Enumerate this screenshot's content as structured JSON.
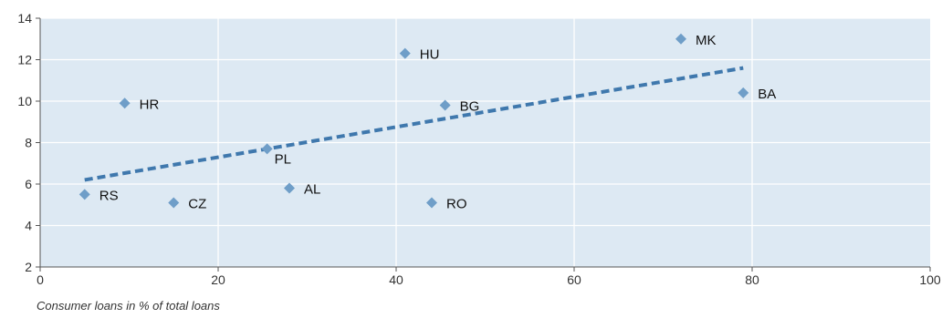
{
  "chart_data": {
    "type": "scatter",
    "xlabel": "Consumer loans in % of total loans",
    "ylabel": "",
    "xlim": [
      0,
      100
    ],
    "ylim": [
      2,
      14
    ],
    "xticks": [
      0,
      20,
      40,
      60,
      80,
      100
    ],
    "yticks": [
      2,
      4,
      6,
      8,
      10,
      12,
      14
    ],
    "grid": true,
    "colors": {
      "background": "#dde9f3",
      "marker": "#6f9ec8",
      "trend": "#3f78ad",
      "grid": "#ffffff"
    },
    "points": [
      {
        "label": "RS",
        "x": 5,
        "y": 5.5
      },
      {
        "label": "HR",
        "x": 9.5,
        "y": 9.9
      },
      {
        "label": "CZ",
        "x": 15,
        "y": 5.1
      },
      {
        "label": "PL",
        "x": 25.5,
        "y": 7.7
      },
      {
        "label": "AL",
        "x": 28,
        "y": 5.8
      },
      {
        "label": "HU",
        "x": 41,
        "y": 12.3
      },
      {
        "label": "RO",
        "x": 44,
        "y": 5.1
      },
      {
        "label": "BG",
        "x": 45.5,
        "y": 9.8
      },
      {
        "label": "MK",
        "x": 72,
        "y": 13
      },
      {
        "label": "BA",
        "x": 79,
        "y": 10.4
      }
    ],
    "trendline": {
      "x": [
        5,
        79
      ],
      "y": [
        6.2,
        11.6
      ]
    }
  }
}
